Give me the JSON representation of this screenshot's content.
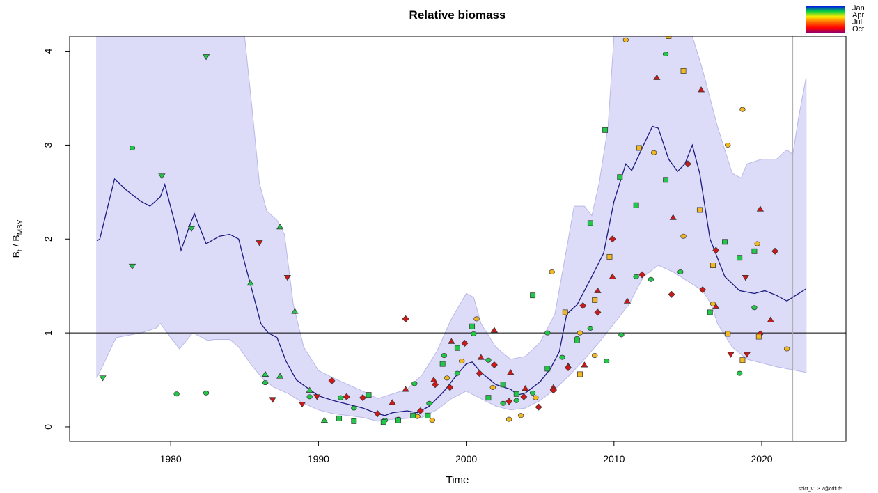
{
  "chart_data": {
    "type": "scatter",
    "title": "Relative biomass",
    "x_label": "Time",
    "y_label": [
      "B",
      "t",
      " / B",
      "MSY"
    ],
    "y_label_subscript": [
      false,
      true,
      false,
      true
    ],
    "footer": "spict_v1.3.7@cdf0f5",
    "xlim": [
      1973.16,
      2025.7
    ],
    "ylim": [
      -0.156,
      4.16
    ],
    "xticks": [
      1980,
      1990,
      2000,
      2010,
      2020
    ],
    "yticks": [
      0,
      1,
      2,
      3,
      4
    ],
    "hline": 1,
    "vline": 2022.1,
    "season_legend": {
      "labels": [
        "Jan",
        "Apr",
        "Jul",
        "Oct"
      ],
      "colors": [
        "#0000ff",
        "#00cc44",
        "#ffee00",
        "#ff6600",
        "#ff0000",
        "#800080"
      ]
    },
    "band": {
      "color": "#dcdcf8",
      "x_upper": [
        1975,
        1985,
        1985.5,
        1986,
        1986.5,
        1987.2,
        1987.7,
        1988.3,
        1989,
        1990,
        1991,
        1992,
        1993,
        1994,
        1995,
        1996,
        1997,
        1998,
        1999,
        2000,
        2000.5,
        2001,
        2002,
        2003,
        2004,
        2005,
        2006,
        2006.8,
        2007.3,
        2008,
        2008.5,
        2009,
        2009.6,
        2010,
        2015.3,
        2016,
        2017,
        2018,
        2018.6,
        2019,
        2020,
        2021,
        2021.7,
        2022.1,
        2022.5,
        2023
      ],
      "upper": [
        4.16,
        4.16,
        3.4,
        2.6,
        2.3,
        2.2,
        2.05,
        1.3,
        0.85,
        0.6,
        0.52,
        0.45,
        0.38,
        0.3,
        0.35,
        0.4,
        0.55,
        0.8,
        1.15,
        1.42,
        1.38,
        1.1,
        0.85,
        0.72,
        0.75,
        0.9,
        1.2,
        1.9,
        2.35,
        2.35,
        2.25,
        2.6,
        3.2,
        4.16,
        4.16,
        3.8,
        3.2,
        2.7,
        2.65,
        2.8,
        2.85,
        2.85,
        2.95,
        2.9,
        3.3,
        3.72
      ],
      "x_lower": [
        1975,
        1975.7,
        1976.3,
        1977,
        1978,
        1979,
        1979.3,
        1980,
        1980.6,
        1981.5,
        1982.5,
        1983,
        1984,
        1984.6,
        1985.5,
        1986.3,
        1987,
        1988,
        1989,
        1990,
        1991,
        1992,
        1993,
        1994,
        1995,
        1996,
        1997,
        1998,
        1999,
        2000,
        2001,
        2002,
        2003,
        2004,
        2005,
        2006,
        2007,
        2008,
        2009,
        2010,
        2011,
        2012,
        2013,
        2014,
        2015,
        2016,
        2016.6,
        2017,
        2018,
        2019,
        2020,
        2021,
        2022,
        2023
      ],
      "lower": [
        0.52,
        0.75,
        0.95,
        0.97,
        1.0,
        1.05,
        1.1,
        0.95,
        0.83,
        1.0,
        0.92,
        0.93,
        0.93,
        0.85,
        0.65,
        0.5,
        0.42,
        0.35,
        0.25,
        0.18,
        0.14,
        0.12,
        0.1,
        0.06,
        0.08,
        0.09,
        0.1,
        0.18,
        0.3,
        0.38,
        0.3,
        0.22,
        0.18,
        0.2,
        0.28,
        0.4,
        0.55,
        0.72,
        0.9,
        1.1,
        1.3,
        1.6,
        1.72,
        1.65,
        1.55,
        1.45,
        1.3,
        1.1,
        0.85,
        0.72,
        0.68,
        0.64,
        0.61,
        0.58
      ]
    },
    "median": {
      "color": "#1a1a80",
      "x": [
        1975,
        1975.2,
        1976.2,
        1977,
        1978,
        1978.6,
        1979.3,
        1979.6,
        1980.4,
        1980.7,
        1981.3,
        1981.6,
        1982.4,
        1983.3,
        1984,
        1984.6,
        1985,
        1985.6,
        1986.1,
        1986.6,
        1987.2,
        1987.8,
        1988.5,
        1989.2,
        1990,
        1991,
        1992,
        1993,
        1994,
        1994.5,
        1995,
        1996,
        1996.7,
        1997.5,
        1998.5,
        1999.3,
        2000,
        2000.4,
        2001,
        2002,
        2003,
        2003.5,
        2004,
        2005,
        2005.7,
        2006.3,
        2006.8,
        2007.5,
        2008.5,
        2009.3,
        2010,
        2010.8,
        2011.2,
        2012,
        2012.6,
        2013,
        2013.7,
        2014.3,
        2014.8,
        2015.3,
        2015.8,
        2016.5,
        2017.5,
        2018.5,
        2019.5,
        2020.2,
        2021,
        2021.7,
        2022.1,
        2023
      ],
      "y": [
        1.98,
        2.0,
        2.64,
        2.52,
        2.4,
        2.35,
        2.45,
        2.58,
        2.1,
        1.88,
        2.15,
        2.27,
        1.95,
        2.03,
        2.05,
        2.0,
        1.75,
        1.4,
        1.1,
        1.0,
        0.95,
        0.7,
        0.5,
        0.42,
        0.33,
        0.28,
        0.24,
        0.2,
        0.14,
        0.12,
        0.15,
        0.17,
        0.15,
        0.22,
        0.38,
        0.54,
        0.67,
        0.69,
        0.58,
        0.45,
        0.4,
        0.34,
        0.36,
        0.48,
        0.62,
        0.8,
        1.2,
        1.3,
        1.6,
        1.85,
        2.4,
        2.8,
        2.73,
        3.0,
        3.2,
        3.18,
        2.85,
        2.72,
        2.8,
        3.0,
        2.7,
        2.0,
        1.6,
        1.45,
        1.42,
        1.45,
        1.4,
        1.34,
        1.38,
        1.47
      ]
    },
    "points": [
      {
        "shape": "triangle-down",
        "color": "#22c74a",
        "x": [
          1975.4,
          1977.4,
          1979.4,
          1981.4,
          1982.4
        ],
        "y": [
          0.52,
          1.71,
          2.67,
          2.11,
          3.94
        ]
      },
      {
        "shape": "triangle-down",
        "color": "#d01818",
        "x": [
          1986.0,
          1987.9,
          1986.9,
          1988.9,
          1989.9,
          2017.9,
          2019.0,
          2018.9
        ],
        "y": [
          1.96,
          1.59,
          0.29,
          0.24,
          0.32,
          0.77,
          0.77,
          1.59
        ]
      },
      {
        "shape": "triangle-up",
        "color": "#22c74a",
        "x": [
          1985.4,
          1987.4,
          1988.4,
          1986.4,
          1989.4,
          1990.4,
          1987.4
        ],
        "y": [
          1.53,
          2.13,
          1.23,
          0.56,
          0.39,
          0.07,
          0.54
        ]
      },
      {
        "shape": "triangle-up",
        "color": "#d01818",
        "x": [
          1995.9,
          1995.0,
          1997.8,
          1999.0,
          2001.0,
          2001.9,
          2003.0,
          2004.0,
          2005.9,
          2006.9,
          2008.0,
          2008.9,
          2009.9,
          2010.9,
          2012.9,
          2014.0,
          2015.9,
          2016.9,
          2019.9,
          2020.6
        ],
        "y": [
          0.4,
          0.26,
          0.5,
          0.91,
          0.74,
          1.03,
          0.58,
          0.41,
          0.42,
          0.65,
          0.66,
          1.45,
          1.6,
          1.34,
          3.72,
          2.23,
          3.59,
          1.28,
          2.32,
          1.14
        ]
      },
      {
        "shape": "diamond",
        "color": "#d01818",
        "x": [
          1990.9,
          1991.9,
          1993.0,
          1994.0,
          1995.9,
          1996.9,
          1997.9,
          1998.9,
          1999.9,
          2000.9,
          2001.9,
          2002.9,
          2003.9,
          2004.9,
          2005.9,
          2006.9,
          2007.9,
          2008.9,
          2009.9,
          2011.9,
          2013.9,
          2015.0,
          2016.0,
          2016.9,
          2019.9,
          2020.9
        ],
        "y": [
          0.49,
          0.32,
          0.31,
          0.14,
          1.15,
          0.17,
          0.45,
          0.42,
          0.89,
          0.57,
          0.66,
          0.27,
          0.32,
          0.21,
          0.39,
          0.63,
          1.29,
          1.22,
          2.0,
          1.62,
          1.41,
          2.8,
          1.46,
          1.88,
          0.99,
          1.87
        ]
      },
      {
        "shape": "circle",
        "color": "#22c74a",
        "x": [
          1977.4,
          1980.4,
          1982.4,
          1986.4,
          1989.4,
          1991.5,
          1992.4,
          1994.5,
          1995.4,
          1996.5,
          1997.5,
          1998.5,
          1999.4,
          2000.5,
          2001.5,
          2002.5,
          2003.4,
          2004.5,
          2005.5,
          2006.5,
          2007.5,
          2008.4,
          2009.5,
          2010.5,
          2011.5,
          2012.5,
          2013.5,
          2014.5,
          2019.5,
          2018.5
        ],
        "y": [
          2.97,
          0.35,
          0.36,
          0.47,
          0.32,
          0.31,
          0.2,
          0.07,
          0.08,
          0.46,
          0.25,
          0.76,
          0.57,
          0.99,
          0.71,
          0.25,
          0.28,
          0.36,
          1.0,
          0.74,
          0.94,
          1.05,
          0.7,
          0.98,
          1.6,
          1.57,
          3.97,
          1.65,
          1.27,
          0.57
        ]
      },
      {
        "shape": "circle",
        "color": "#f2b824",
        "x": [
          2002.9,
          2003.7,
          2004.7,
          2005.8,
          2007.7,
          2008.7,
          2010.8,
          2012.7,
          2014.7,
          2016.7,
          2017.7,
          2018.7,
          2019.7,
          2021.7,
          2000.7,
          1999.7,
          1998.7,
          1997.7,
          1996.7,
          2001.8
        ],
        "y": [
          0.08,
          0.12,
          0.31,
          1.65,
          1.0,
          0.76,
          4.12,
          2.92,
          2.03,
          1.31,
          3.0,
          3.38,
          1.95,
          0.83,
          1.15,
          0.7,
          0.52,
          0.07,
          0.11,
          0.42
        ]
      },
      {
        "shape": "square",
        "color": "#22c74a",
        "x": [
          1991.4,
          1992.4,
          1993.4,
          1994.4,
          1995.4,
          1996.4,
          1997.4,
          1998.4,
          1999.4,
          2000.4,
          2001.5,
          2002.5,
          2003.4,
          2004.5,
          2005.5,
          2007.5,
          2008.4,
          2009.4,
          2010.4,
          2011.5,
          2013.5,
          2016.5,
          2017.5,
          2018.5,
          2019.5
        ],
        "y": [
          0.09,
          0.06,
          0.34,
          0.05,
          0.07,
          0.12,
          0.12,
          0.67,
          0.84,
          1.07,
          0.31,
          0.45,
          0.35,
          1.4,
          0.62,
          0.92,
          2.17,
          3.16,
          2.66,
          2.36,
          2.63,
          1.22,
          1.97,
          1.8,
          1.87
        ]
      },
      {
        "shape": "square",
        "color": "#f2b824",
        "x": [
          2006.7,
          2007.7,
          2008.7,
          2009.7,
          2011.7,
          2013.7,
          2014.7,
          2015.8,
          2016.7,
          2017.7,
          2019.8,
          2018.7
        ],
        "y": [
          1.22,
          0.56,
          1.35,
          1.81,
          2.97,
          4.16,
          3.79,
          2.31,
          1.72,
          0.99,
          0.96,
          0.71
        ]
      }
    ]
  }
}
